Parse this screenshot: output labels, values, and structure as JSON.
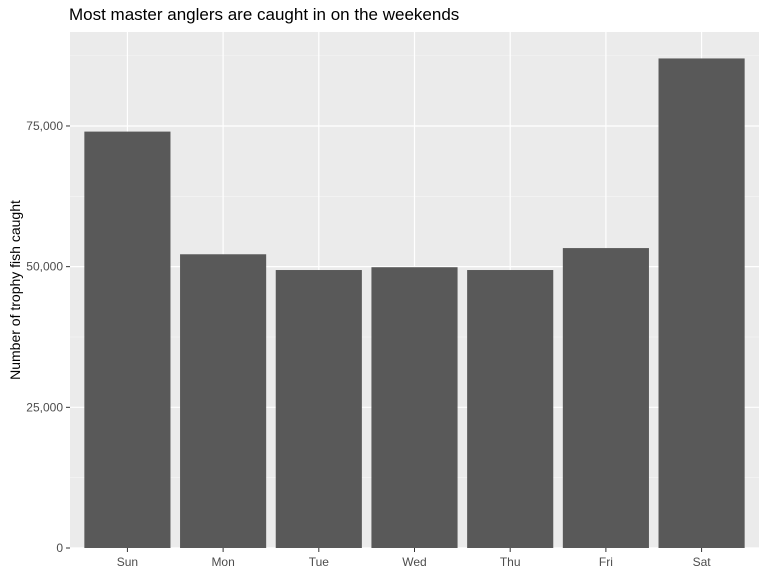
{
  "chart_data": {
    "type": "bar",
    "title": "Most master anglers are caught in on the weekends",
    "xlabel": "",
    "ylabel": "Number of trophy fish caught",
    "categories": [
      "Sun",
      "Mon",
      "Tue",
      "Wed",
      "Thu",
      "Fri",
      "Sat"
    ],
    "values": [
      74000,
      52200,
      49400,
      49900,
      49400,
      53300,
      87000
    ],
    "ylim": [
      0,
      91700
    ],
    "yticks": [
      0,
      25000,
      50000,
      75000
    ],
    "ytick_labels": [
      "0",
      "25,000",
      "50,000",
      "75,000"
    ],
    "grid": true,
    "legend": "none",
    "colors": {
      "bar": "#595959",
      "panel": "#ebebeb",
      "grid_major": "#ffffff",
      "grid_minor": "#f5f5f5",
      "tick": "#333333",
      "tick_text": "#4d4d4d"
    }
  }
}
